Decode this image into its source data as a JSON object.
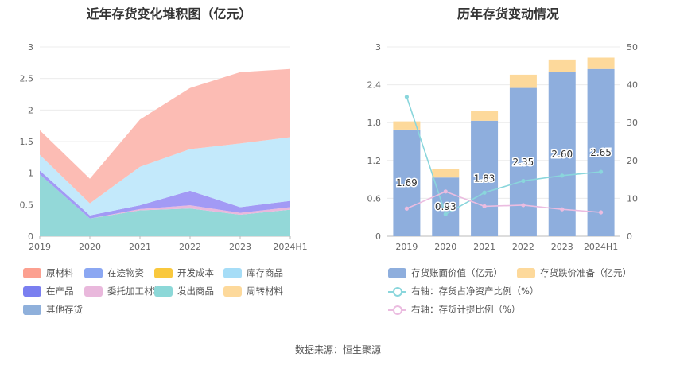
{
  "left_chart": {
    "title": "近年存货变化堆积图（亿元）",
    "source": "",
    "chart_data": {
      "type": "area",
      "stacked": true,
      "categories": [
        "2019",
        "2020",
        "2021",
        "2022",
        "2023",
        "2024H1"
      ],
      "ylim": [
        0,
        3
      ],
      "yticks": [
        "0",
        "0.5",
        "1",
        "1.5",
        "2",
        "2.5",
        "3"
      ],
      "grid": true,
      "legend_position": "bottom",
      "series": [
        {
          "name": "发出商品",
          "color": "#93d8d8",
          "values": [
            0.98,
            0.28,
            0.41,
            0.44,
            0.34,
            0.42
          ]
        },
        {
          "name": "委托加工材料",
          "color": "#e9b8dc",
          "values": [
            0.0,
            0.0,
            0.02,
            0.05,
            0.03,
            0.04
          ]
        },
        {
          "name": "在产品",
          "color": "#a29af5",
          "values": [
            0.06,
            0.05,
            0.06,
            0.23,
            0.09,
            0.1
          ]
        },
        {
          "name": "其他存货",
          "color": "#8fb0db",
          "values": [
            0.0,
            0.0,
            0.0,
            0.0,
            0.0,
            0.0
          ]
        },
        {
          "name": "在途物资",
          "color": "#8ba7f2",
          "values": [
            0.0,
            0.0,
            0.0,
            0.0,
            0.0,
            0.0
          ]
        },
        {
          "name": "开发成本",
          "color": "#f9c83d",
          "values": [
            0.0,
            0.0,
            0.0,
            0.0,
            0.0,
            0.0
          ]
        },
        {
          "name": "周转材料",
          "color": "#fdd99b",
          "values": [
            0.0,
            0.0,
            0.0,
            0.0,
            0.0,
            0.0
          ]
        },
        {
          "name": "库存商品",
          "color": "#c3e9fb",
          "values": [
            0.25,
            0.19,
            0.61,
            0.66,
            1.01,
            1.01
          ]
        },
        {
          "name": "原材料",
          "color": "#fcbcb4",
          "values": [
            0.39,
            0.39,
            0.75,
            0.97,
            1.13,
            1.08
          ]
        }
      ]
    },
    "legend": [
      {
        "name": "原材料",
        "color": "#fca090"
      },
      {
        "name": "在途物资",
        "color": "#8ba7f2"
      },
      {
        "name": "开发成本",
        "color": "#f9c83d"
      },
      {
        "name": "库存商品",
        "color": "#a6ddf7"
      },
      {
        "name": "在产品",
        "color": "#7a7ff0"
      },
      {
        "name": "委托加工材料",
        "color": "#e9b8dc"
      },
      {
        "name": "发出商品",
        "color": "#8cd8d8"
      },
      {
        "name": "周转材料",
        "color": "#fdd99b"
      },
      {
        "name": "其他存货",
        "color": "#8fb0db"
      }
    ]
  },
  "right_chart": {
    "title": "历年存货变动情况",
    "chart_data": {
      "type": "bar",
      "stacked": true,
      "categories": [
        "2019",
        "2020",
        "2021",
        "2022",
        "2023",
        "2024H1"
      ],
      "ylim": [
        0,
        3
      ],
      "yticks": [
        "0",
        "0.6",
        "1.2",
        "1.8",
        "2.4",
        "3"
      ],
      "y2lim": [
        0,
        50
      ],
      "y2ticks": [
        "0",
        "10",
        "20",
        "30",
        "40",
        "50"
      ],
      "grid": true,
      "legend_position": "bottom",
      "series": [
        {
          "name": "存货账面价值（亿元）",
          "color": "#8eaedd",
          "values": [
            1.69,
            0.93,
            1.83,
            2.35,
            2.6,
            2.65
          ],
          "labels": [
            "1.69",
            "0.93",
            "1.83",
            "2.35",
            "2.60",
            "2.65"
          ]
        },
        {
          "name": "存货跌价准备（亿元）",
          "color": "#fdd99b",
          "values": [
            0.13,
            0.13,
            0.16,
            0.21,
            0.2,
            0.18
          ]
        }
      ],
      "lines": [
        {
          "name": "右轴：存货占净资产比例（%）",
          "color": "#8ad6dc",
          "axis": "right",
          "values": [
            36.8,
            5.8,
            11.5,
            14.6,
            16.0,
            17.0
          ]
        },
        {
          "name": "右轴：存货计提比例（%）",
          "color": "#ebbce0",
          "axis": "right",
          "values": [
            7.3,
            11.8,
            7.9,
            8.2,
            7.1,
            6.3
          ]
        }
      ]
    }
  },
  "source_text": "数据来源：恒生聚源"
}
